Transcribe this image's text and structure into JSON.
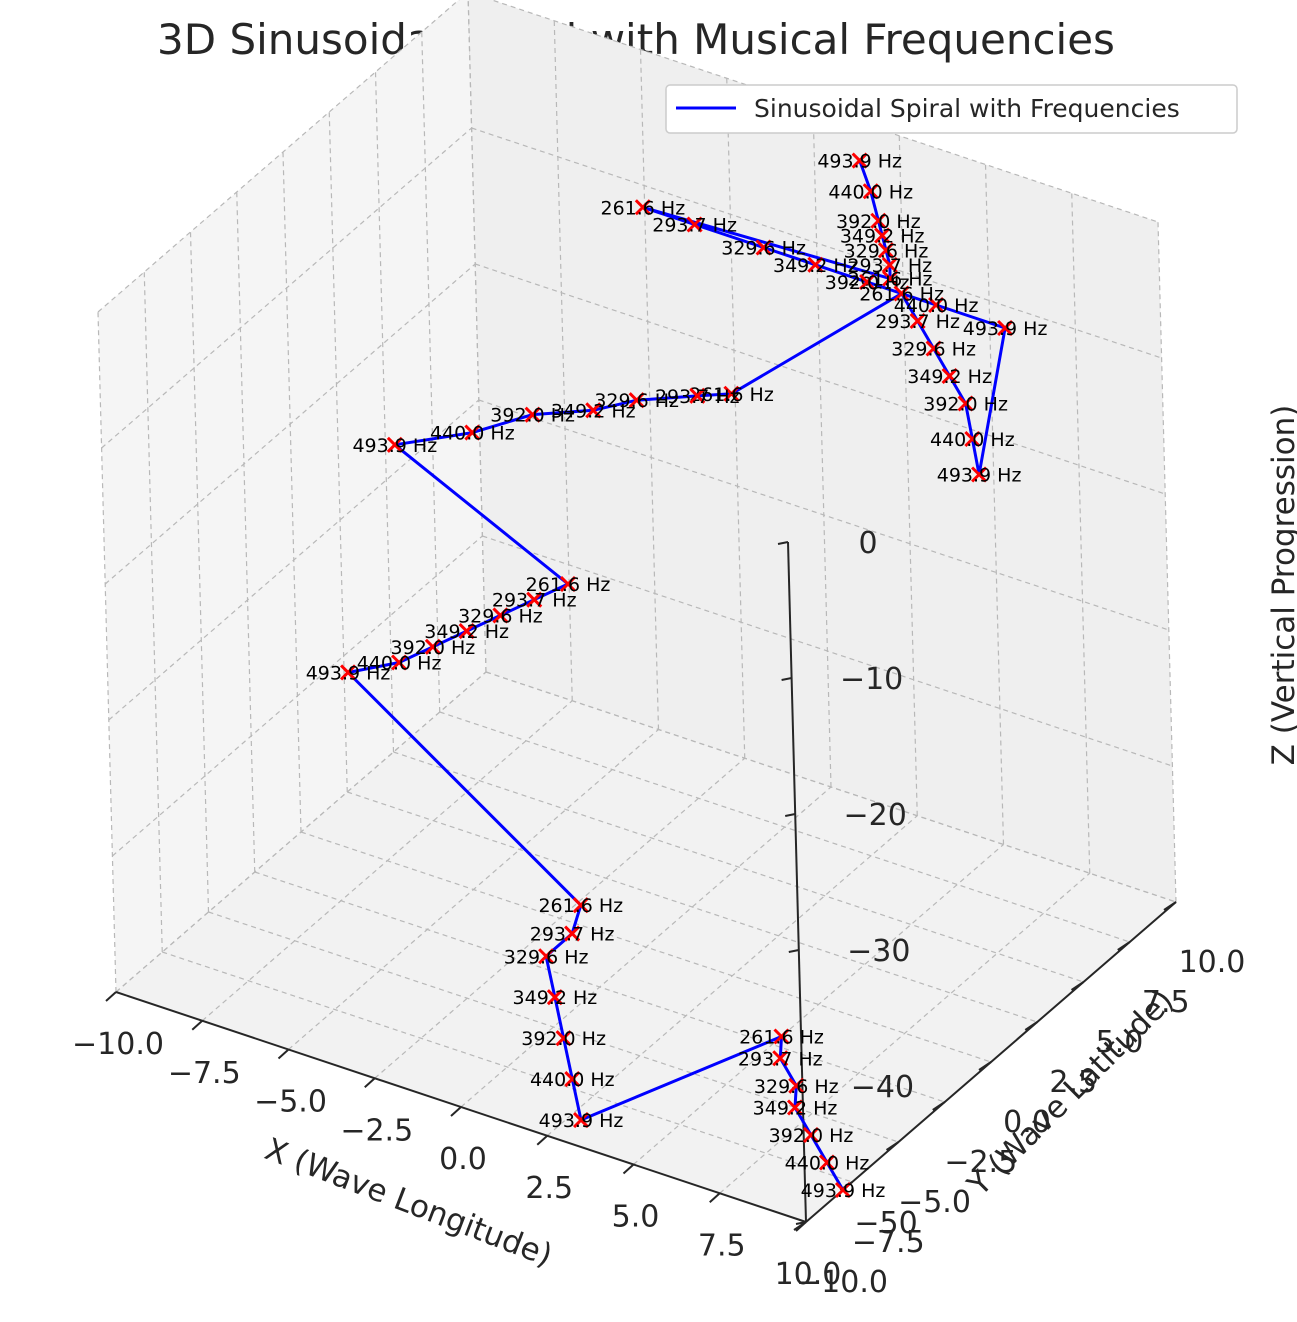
{
  "chart_data": {
    "type": "line",
    "projection": "3d",
    "title": "3D Sinusoidal Spiral with Musical Frequencies",
    "xlabel": "X (Wave Longitude)",
    "ylabel": "Y (Wave Latitude)",
    "zlabel": "Z (Vertical Progression)",
    "xlim": [
      -10,
      10
    ],
    "ylim": [
      -10,
      10
    ],
    "zlim": [
      -50,
      0
    ],
    "x_ticks": [
      "−10.0",
      "−7.5",
      "−5.0",
      "−2.5",
      "0.0",
      "2.5",
      "5.0",
      "7.5",
      "10.0"
    ],
    "y_ticks": [
      "−10.0",
      "−7.5",
      "−5.0",
      "−2.5",
      "0.0",
      "2.5",
      "5.0",
      "7.5",
      "10.0"
    ],
    "z_ticks": [
      "0",
      "−10",
      "−20",
      "−30",
      "−40",
      "−50"
    ],
    "grid": true,
    "legend": {
      "position": "top-right",
      "entries": [
        "Sinusoidal Spiral with Frequencies"
      ]
    },
    "series": [
      {
        "name": "Sinusoidal Spiral with Frequencies",
        "color": "#0000ff",
        "marker": "x",
        "marker_color": "#ff0000",
        "labels": [
          "493.9 Hz",
          "440.0 Hz",
          "392.0 Hz",
          "349.2 Hz",
          "329.6 Hz",
          "293.7 Hz",
          "261.6 Hz",
          "261.6 Hz",
          "293.7 Hz",
          "329.6 Hz",
          "349.2 Hz",
          "392.0 Hz",
          "440.0 Hz",
          "493.9 Hz",
          "493.9 Hz",
          "440.0 Hz",
          "392.0 Hz",
          "349.2 Hz",
          "329.6 Hz",
          "293.7 Hz",
          "261.6 Hz",
          "261.6 Hz",
          "293.7 Hz",
          "329.6 Hz",
          "349.2 Hz",
          "392.0 Hz",
          "440.0 Hz",
          "493.9 Hz",
          "261.6 Hz",
          "293.7 Hz",
          "329.6 Hz",
          "349.2 Hz",
          "392.0 Hz",
          "440.0 Hz",
          "493.9 Hz",
          "261.6 Hz",
          "293.7 Hz",
          "329.6 Hz",
          "349.2 Hz",
          "392.0 Hz",
          "440.0 Hz",
          "493.9 Hz",
          "261.6 Hz",
          "293.7 Hz",
          "329.6 Hz",
          "349.2 Hz",
          "392.0 Hz",
          "440.0 Hz",
          "493.9 Hz"
        ],
        "x": [
          1.6,
          1.9,
          2.1,
          2.2,
          2.3,
          2.4,
          2.4,
          -4.5,
          -3.0,
          -1.0,
          0.5,
          2.0,
          4.0,
          6.0,
          9.0,
          8.0,
          7.0,
          6.0,
          5.0,
          4.0,
          3.0,
          -1.5,
          -2.5,
          -4.0,
          -5.0,
          -6.5,
          -8.0,
          -10.0,
          -2.0,
          -3.0,
          -4.0,
          -5.0,
          -6.0,
          -7.0,
          -8.5,
          2.0,
          2.0,
          1.5,
          2.0,
          2.5,
          3.0,
          3.5,
          5.0,
          5.5,
          6.5,
          7.0,
          8.0,
          9.0,
          10.0
        ],
        "y": [
          9.5,
          9.5,
          9.5,
          9.5,
          9.5,
          9.5,
          9.5,
          9.0,
          9.0,
          9.0,
          9.0,
          9.0,
          9.0,
          9.0,
          2.0,
          3.5,
          5.0,
          6.0,
          7.0,
          8.0,
          9.0,
          8.0,
          8.0,
          7.5,
          7.0,
          6.5,
          6.0,
          5.5,
          0.0,
          0.0,
          0.0,
          0.0,
          0.0,
          0.0,
          0.0,
          -7.0,
          -7.5,
          -8.0,
          -8.5,
          -9.0,
          -9.5,
          -10.0,
          -2.0,
          -3.0,
          -4.0,
          -5.0,
          -6.0,
          -7.0,
          -8.0
        ],
        "z": [
          -2.0,
          -4.0,
          -6.0,
          -7.0,
          -8.0,
          -9.0,
          -10.0,
          -10.0,
          -10.0,
          -10.0,
          -10.0,
          -10.0,
          -10.0,
          -10.0,
          -10.0,
          -10.0,
          -10.0,
          -10.0,
          -10.0,
          -10.0,
          -10.0,
          -20.0,
          -21.0,
          -22.0,
          -23.0,
          -24.0,
          -26.0,
          -28.0,
          -25.0,
          -27.0,
          -29.0,
          -31.0,
          -33.0,
          -35.0,
          -37.0,
          -37.0,
          -38.5,
          -40.0,
          -42.0,
          -44.0,
          -46.0,
          -48.0,
          -50.0,
          -50.0,
          -50.0,
          -50.0,
          -50.0,
          -50.0,
          -50.0
        ]
      }
    ]
  }
}
